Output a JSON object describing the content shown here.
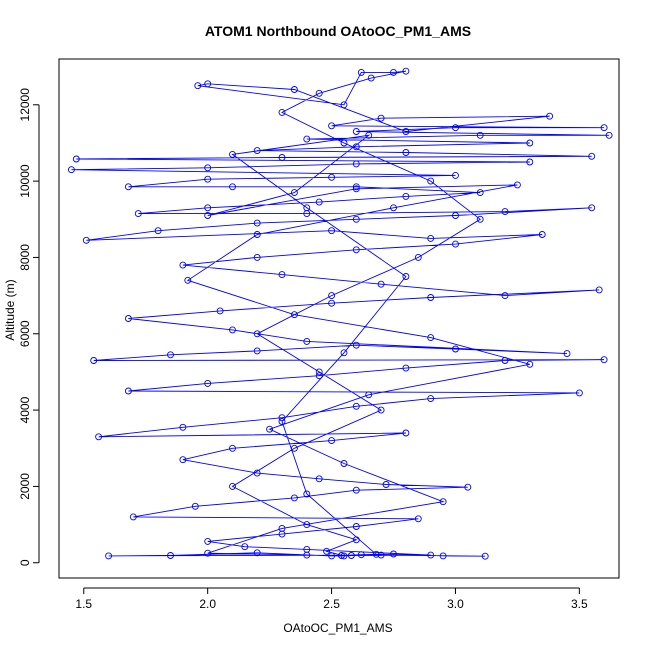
{
  "chart_data": {
    "type": "line",
    "title": "ATOM1 Northbound OAtoOC_PM1_AMS",
    "xlabel": "OAtoOC_PM1_AMS",
    "ylabel": "Altitude (m)",
    "xlim": [
      1.4,
      3.66
    ],
    "ylim": [
      -400,
      13200
    ],
    "xticks": [
      1.5,
      2.0,
      2.5,
      3.0,
      3.5
    ],
    "xtick_labels": [
      "1.5",
      "2.0",
      "2.5",
      "3.0",
      "3.5"
    ],
    "yticks": [
      0,
      2000,
      4000,
      6000,
      8000,
      10000,
      12000
    ],
    "ytick_labels": [
      "0",
      "2000",
      "4000",
      "6000",
      "8000",
      "10000",
      "12000"
    ],
    "grid": false,
    "legend": "none",
    "series": [
      {
        "color": "#0000ff",
        "marker": "open-circle",
        "points": [
          [
            2.54,
            190
          ],
          [
            2.62,
            210
          ],
          [
            2.75,
            230
          ],
          [
            2.95,
            180
          ],
          [
            3.12,
            170
          ],
          [
            2.7,
            200
          ],
          [
            1.6,
            180
          ],
          [
            1.85,
            190
          ],
          [
            2.2,
            260
          ],
          [
            2.5,
            180
          ],
          [
            2.58,
            190
          ],
          [
            2.9,
            200
          ],
          [
            2.4,
            350
          ],
          [
            2.15,
            420
          ],
          [
            2.0,
            560
          ],
          [
            2.3,
            750
          ],
          [
            2.6,
            950
          ],
          [
            2.85,
            1150
          ],
          [
            1.7,
            1200
          ],
          [
            1.95,
            1480
          ],
          [
            2.35,
            1700
          ],
          [
            2.6,
            1900
          ],
          [
            3.05,
            1980
          ],
          [
            2.72,
            2050
          ],
          [
            2.45,
            2200
          ],
          [
            2.2,
            2350
          ],
          [
            1.9,
            2700
          ],
          [
            2.1,
            3000
          ],
          [
            2.5,
            3200
          ],
          [
            2.8,
            3400
          ],
          [
            1.56,
            3300
          ],
          [
            1.9,
            3550
          ],
          [
            2.3,
            3800
          ],
          [
            2.6,
            4100
          ],
          [
            2.9,
            4300
          ],
          [
            3.5,
            4450
          ],
          [
            1.68,
            4500
          ],
          [
            2.0,
            4700
          ],
          [
            2.45,
            4900
          ],
          [
            2.8,
            5100
          ],
          [
            3.2,
            5300
          ],
          [
            3.6,
            5320
          ],
          [
            1.54,
            5300
          ],
          [
            1.85,
            5450
          ],
          [
            2.2,
            5550
          ],
          [
            2.6,
            5700
          ],
          [
            3.0,
            5600
          ],
          [
            3.45,
            5480
          ],
          [
            2.4,
            5800
          ],
          [
            2.1,
            6100
          ],
          [
            1.68,
            6400
          ],
          [
            2.05,
            6600
          ],
          [
            2.5,
            6800
          ],
          [
            2.9,
            6950
          ],
          [
            3.58,
            7150
          ],
          [
            3.2,
            7000
          ],
          [
            2.7,
            7300
          ],
          [
            2.3,
            7550
          ],
          [
            1.9,
            7800
          ],
          [
            2.2,
            8000
          ],
          [
            2.6,
            8200
          ],
          [
            3.0,
            8350
          ],
          [
            3.35,
            8600
          ],
          [
            2.9,
            8500
          ],
          [
            2.5,
            8700
          ],
          [
            1.51,
            8450
          ],
          [
            1.8,
            8700
          ],
          [
            2.2,
            8900
          ],
          [
            2.6,
            9000
          ],
          [
            3.0,
            9100
          ],
          [
            3.55,
            9300
          ],
          [
            3.2,
            9200
          ],
          [
            2.4,
            9150
          ],
          [
            1.72,
            9150
          ],
          [
            2.0,
            9300
          ],
          [
            2.45,
            9450
          ],
          [
            2.8,
            9600
          ],
          [
            3.1,
            9700
          ],
          [
            2.6,
            9850
          ],
          [
            2.1,
            9850
          ],
          [
            1.68,
            9850
          ],
          [
            2.0,
            10050
          ],
          [
            2.5,
            10100
          ],
          [
            3.0,
            10150
          ],
          [
            1.45,
            10300
          ],
          [
            2.0,
            10350
          ],
          [
            2.6,
            10450
          ],
          [
            3.3,
            10500
          ],
          [
            1.47,
            10580
          ],
          [
            2.3,
            10620
          ],
          [
            3.55,
            10650
          ],
          [
            2.8,
            10750
          ],
          [
            2.2,
            10800
          ],
          [
            2.6,
            10900
          ],
          [
            3.3,
            11000
          ],
          [
            2.4,
            11100
          ],
          [
            3.1,
            11200
          ],
          [
            3.62,
            11200
          ],
          [
            2.6,
            11300
          ],
          [
            3.0,
            11400
          ],
          [
            3.6,
            11400
          ],
          [
            2.5,
            11450
          ],
          [
            2.7,
            11650
          ],
          [
            3.38,
            11700
          ],
          [
            2.8,
            11300
          ],
          [
            2.35,
            12400
          ],
          [
            2.0,
            12550
          ],
          [
            1.96,
            12500
          ],
          [
            2.55,
            12000
          ],
          [
            2.62,
            12850
          ],
          [
            2.75,
            12850
          ],
          [
            2.8,
            12880
          ],
          [
            2.66,
            12700
          ],
          [
            2.45,
            12300
          ],
          [
            2.3,
            11800
          ],
          [
            2.55,
            11000
          ],
          [
            2.9,
            10000
          ],
          [
            3.1,
            9000
          ],
          [
            2.85,
            8000
          ],
          [
            2.5,
            7000
          ],
          [
            2.2,
            6000
          ],
          [
            2.45,
            5000
          ],
          [
            2.7,
            4000
          ],
          [
            2.35,
            3000
          ],
          [
            2.1,
            2000
          ],
          [
            2.4,
            1000
          ],
          [
            2.6,
            600
          ],
          [
            2.48,
            300
          ],
          [
            2.55,
            180
          ],
          [
            2.68,
            220
          ],
          [
            2.4,
            1800
          ],
          [
            2.3,
            3700
          ],
          [
            2.55,
            5500
          ],
          [
            2.8,
            7500
          ],
          [
            2.4,
            9300
          ],
          [
            2.1,
            10700
          ],
          [
            2.65,
            11200
          ],
          [
            2.35,
            9700
          ],
          [
            2.0,
            9100
          ],
          [
            2.6,
            9800
          ],
          [
            3.25,
            9900
          ],
          [
            2.75,
            9300
          ],
          [
            2.2,
            8600
          ],
          [
            1.92,
            7400
          ],
          [
            2.35,
            6500
          ],
          [
            2.9,
            5900
          ],
          [
            3.3,
            5200
          ],
          [
            2.65,
            4400
          ],
          [
            2.25,
            3500
          ],
          [
            2.55,
            2600
          ],
          [
            2.95,
            1600
          ],
          [
            2.3,
            900
          ],
          [
            2.0,
            250
          ],
          [
            2.4,
            200
          ]
        ]
      }
    ]
  }
}
